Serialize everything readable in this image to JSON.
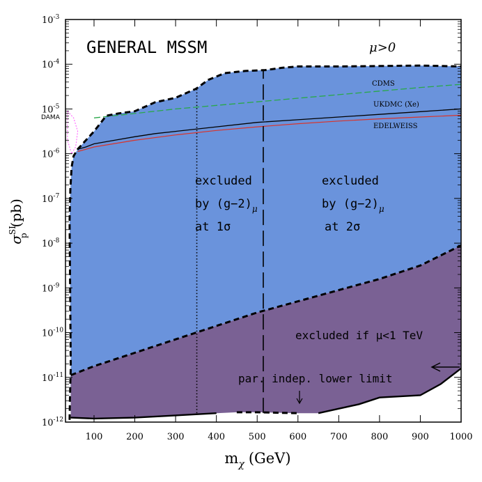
{
  "chart_data": {
    "type": "area",
    "title": "GENERAL MSSM",
    "condition": "μ>0",
    "xlabel": "m",
    "xlabel_sub": "χ",
    "xlabel_unit": "(GeV)",
    "ylabel": "σ",
    "ylabel_sup": "SI",
    "ylabel_sub": "p",
    "ylabel_unit": "(pb)",
    "xlim": [
      30,
      1000
    ],
    "ylog_range": [
      -12,
      -3
    ],
    "x_ticks": [
      100,
      200,
      300,
      400,
      500,
      600,
      700,
      800,
      900,
      1000
    ],
    "x_tick_labels": [
      "100",
      "200",
      "300",
      "400",
      "500",
      "600",
      "700",
      "800",
      "900",
      "1000"
    ],
    "y_ticks": [
      {
        "base": "10",
        "exp": "-12",
        "log": -12
      },
      {
        "base": "10",
        "exp": "-11",
        "log": -11
      },
      {
        "base": "10",
        "exp": "-10",
        "log": -10
      },
      {
        "base": "10",
        "exp": "-9",
        "log": -9
      },
      {
        "base": "10",
        "exp": "-8",
        "log": -8
      },
      {
        "base": "10",
        "exp": "-7",
        "log": -7
      },
      {
        "base": "10",
        "exp": "-6",
        "log": -6
      },
      {
        "base": "10",
        "exp": "-5",
        "log": -5
      },
      {
        "base": "10",
        "exp": "-4",
        "log": -4
      },
      {
        "base": "10",
        "exp": "-3",
        "log": -3
      }
    ],
    "colors": {
      "blue_region": "#6a93dc",
      "purple_region": "#7a6194",
      "cdms": "#2aa84a",
      "edelweiss": "#d9342b",
      "ukdmc": "#000000"
    },
    "regions": {
      "upper_boundary": [
        [
          40,
          -7.5
        ],
        [
          42,
          -6.8
        ],
        [
          45,
          -6.3
        ],
        [
          50,
          -6.05
        ],
        [
          60,
          -5.9
        ],
        [
          80,
          -5.7
        ],
        [
          100,
          -5.5
        ],
        [
          130,
          -5.15
        ],
        [
          160,
          -5.1
        ],
        [
          200,
          -5.05
        ],
        [
          250,
          -4.85
        ],
        [
          300,
          -4.75
        ],
        [
          350,
          -4.55
        ],
        [
          380,
          -4.35
        ],
        [
          420,
          -4.2
        ],
        [
          470,
          -4.15
        ],
        [
          520,
          -4.13
        ],
        [
          560,
          -4.08
        ],
        [
          600,
          -4.05
        ],
        [
          700,
          -4.05
        ],
        [
          800,
          -4.04
        ],
        [
          900,
          -4.03
        ],
        [
          1000,
          -4.05
        ]
      ],
      "lower_left_boundary": [
        [
          40,
          -11.95
        ],
        [
          41,
          -11.5
        ],
        [
          42,
          -11.1
        ],
        [
          43,
          -10.8
        ]
      ],
      "blue_lower_boundary": [
        [
          43,
          -10.95
        ],
        [
          100,
          -10.75
        ],
        [
          200,
          -10.45
        ],
        [
          300,
          -10.15
        ],
        [
          400,
          -9.85
        ],
        [
          500,
          -9.55
        ],
        [
          600,
          -9.3
        ],
        [
          700,
          -9.05
        ],
        [
          800,
          -8.8
        ],
        [
          900,
          -8.5
        ],
        [
          1000,
          -8.05
        ]
      ],
      "lower_limit_boundary": [
        [
          43,
          -11.9
        ],
        [
          100,
          -11.92
        ],
        [
          200,
          -11.9
        ],
        [
          300,
          -11.85
        ],
        [
          400,
          -11.8
        ],
        [
          450,
          -11.78
        ],
        [
          500,
          -11.78
        ],
        [
          600,
          -11.8
        ],
        [
          650,
          -11.8
        ],
        [
          750,
          -11.6
        ],
        [
          800,
          -11.45
        ],
        [
          900,
          -11.4
        ],
        [
          950,
          -11.15
        ],
        [
          1000,
          -10.8
        ]
      ],
      "sigma1_x": 352,
      "sigma1_y_range": [
        -11.8,
        -4.55
      ],
      "sigma2_x": 515,
      "sigma2_y_range": [
        -11.8,
        -4.13
      ],
      "lower_limit_dashed_x_range": [
        430,
        645
      ]
    },
    "series": [
      {
        "name": "CDMS",
        "values": [
          [
            100,
            -5.2
          ],
          [
            200,
            -5.1
          ],
          [
            300,
            -5.0
          ],
          [
            400,
            -4.92
          ],
          [
            500,
            -4.84
          ],
          [
            600,
            -4.76
          ],
          [
            700,
            -4.68
          ],
          [
            800,
            -4.6
          ],
          [
            900,
            -4.52
          ],
          [
            1000,
            -4.45
          ]
        ]
      },
      {
        "name": "UKDMC (Xe)",
        "values": [
          [
            60,
            -5.9
          ],
          [
            80,
            -5.85
          ],
          [
            100,
            -5.78
          ],
          [
            150,
            -5.7
          ],
          [
            200,
            -5.62
          ],
          [
            250,
            -5.55
          ],
          [
            300,
            -5.5
          ],
          [
            400,
            -5.4
          ],
          [
            500,
            -5.3
          ],
          [
            600,
            -5.24
          ],
          [
            700,
            -5.18
          ],
          [
            800,
            -5.12
          ],
          [
            900,
            -5.06
          ],
          [
            1000,
            -5.0
          ]
        ]
      },
      {
        "name": "EDELWEISS",
        "values": [
          [
            60,
            -5.95
          ],
          [
            100,
            -5.85
          ],
          [
            200,
            -5.7
          ],
          [
            300,
            -5.58
          ],
          [
            400,
            -5.48
          ],
          [
            500,
            -5.4
          ],
          [
            600,
            -5.33
          ],
          [
            700,
            -5.27
          ],
          [
            800,
            -5.22
          ],
          [
            900,
            -5.18
          ],
          [
            1000,
            -5.14
          ]
        ]
      },
      {
        "name": "DAMA",
        "values": [
          [
            35,
            -5.05
          ],
          [
            50,
            -5.2
          ],
          [
            60,
            -5.5
          ],
          [
            55,
            -5.85
          ],
          [
            45,
            -6.0
          ],
          [
            35,
            -5.7
          ]
        ]
      }
    ],
    "annotations": {
      "excluded_1": "excluded",
      "by_g2_1": "by (g−2)",
      "mu_1": "μ",
      "at_1": "at 1σ",
      "excluded_2": "excluded",
      "by_g2_2": "by (g−2)",
      "mu_2": "μ",
      "at_2": "at 2σ",
      "excluded_if": "excluded if μ<1 TeV",
      "lower_limit": "par. indep. lower limit"
    }
  }
}
